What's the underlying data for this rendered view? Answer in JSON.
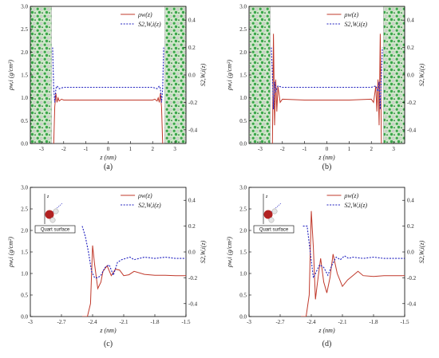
{
  "panels": [
    {
      "caption": "(a)",
      "xlabel": "z (nm)",
      "ylabel_left": "ρw,i (g/cm³)",
      "ylabel_right": "S2,W,i(z)",
      "show_atoms": true,
      "show_inset": false
    },
    {
      "caption": "(b)",
      "xlabel": "z (nm)",
      "ylabel_left": "ρw,i (g/cm³)",
      "ylabel_right": "S2,W,i(z)",
      "show_atoms": true,
      "show_inset": false
    },
    {
      "caption": "(c)",
      "xlabel": "z (nm)",
      "ylabel_left": "ρw,i (g/cm³)",
      "ylabel_right": "S2,W,i(z)",
      "show_atoms": false,
      "show_inset": true,
      "inset_label": "Quart surface"
    },
    {
      "caption": "(d)",
      "xlabel": "z (nm)",
      "ylabel_left": "ρw,i (g/cm³)",
      "ylabel_right": "S2,W,i(z)",
      "show_atoms": false,
      "show_inset": true,
      "inset_label": "Quart surface"
    }
  ],
  "legend": {
    "density": "ρw(z)",
    "order": "S2,W,i(z)"
  },
  "colors": {
    "density": "#c0392b",
    "order": "#1f1fbf",
    "wall_green": "#3aa64a",
    "wall_atom": "#d9d9d9"
  },
  "chart_data": [
    {
      "type": "line",
      "panel": "(a)",
      "xlim": [
        -3.5,
        3.5
      ],
      "ylim_left": [
        0,
        3.0
      ],
      "ylim_right": [
        -0.5,
        0.5
      ],
      "xticks": [
        -3,
        -2,
        -1,
        0,
        1,
        2,
        3
      ],
      "yticks_left": [
        0.0,
        0.5,
        1.0,
        1.5,
        2.0,
        2.5,
        3.0
      ],
      "yticks_right": [
        -0.4,
        -0.2,
        0.0,
        0.2,
        0.4
      ],
      "wall_regions": [
        [
          -3.5,
          -2.55
        ],
        [
          2.55,
          3.5
        ]
      ],
      "series": [
        {
          "name": "ρw(z)",
          "axis": "left",
          "x": [
            -2.45,
            -2.4,
            -2.35,
            -2.3,
            -2.25,
            -2.2,
            -2.1,
            -2.0,
            -1.0,
            0.0,
            1.0,
            2.0,
            2.1,
            2.2,
            2.25,
            2.3,
            2.35,
            2.4,
            2.45
          ],
          "y": [
            0.0,
            0.8,
            1.1,
            0.9,
            1.0,
            0.93,
            0.97,
            0.95,
            0.95,
            0.95,
            0.95,
            0.95,
            0.97,
            0.93,
            1.0,
            0.9,
            1.1,
            0.8,
            0.0
          ]
        },
        {
          "name": "S2,W,i(z)",
          "axis": "right",
          "x": [
            -2.5,
            -2.45,
            -2.4,
            -2.35,
            -2.3,
            -2.2,
            -2.0,
            -1.0,
            0.0,
            1.0,
            2.0,
            2.2,
            2.3,
            2.35,
            2.4,
            2.45,
            2.5
          ],
          "y": [
            0.2,
            -0.1,
            -0.2,
            -0.1,
            -0.08,
            -0.1,
            -0.09,
            -0.09,
            -0.09,
            -0.09,
            -0.09,
            -0.1,
            -0.08,
            -0.1,
            -0.2,
            -0.1,
            0.2
          ]
        }
      ]
    },
    {
      "type": "line",
      "panel": "(b)",
      "xlim": [
        -3.5,
        3.5
      ],
      "ylim_left": [
        0,
        3.0
      ],
      "ylim_right": [
        -0.5,
        0.5
      ],
      "xticks": [
        -3,
        -2,
        -1,
        0,
        1,
        2,
        3
      ],
      "yticks_left": [
        0.0,
        0.5,
        1.0,
        1.5,
        2.0,
        2.5,
        3.0
      ],
      "yticks_right": [
        -0.4,
        -0.2,
        0.0,
        0.2,
        0.4
      ],
      "wall_regions": [
        [
          -3.5,
          -2.55
        ],
        [
          2.55,
          3.5
        ]
      ],
      "series": [
        {
          "name": "ρw(z)",
          "axis": "left",
          "x": [
            -2.45,
            -2.4,
            -2.35,
            -2.3,
            -2.25,
            -2.2,
            -2.1,
            -2.0,
            -1.0,
            0.0,
            1.0,
            2.0,
            2.1,
            2.2,
            2.25,
            2.3,
            2.35,
            2.4,
            2.45
          ],
          "y": [
            0.0,
            2.4,
            0.4,
            1.4,
            0.7,
            1.25,
            0.9,
            0.97,
            0.95,
            0.95,
            0.95,
            0.97,
            0.9,
            1.25,
            0.7,
            1.4,
            0.4,
            2.4,
            0.0
          ]
        },
        {
          "name": "S2,W,i(z)",
          "axis": "right",
          "x": [
            -2.5,
            -2.45,
            -2.4,
            -2.35,
            -2.3,
            -2.2,
            -2.0,
            -1.0,
            0.0,
            1.0,
            2.0,
            2.2,
            2.3,
            2.35,
            2.4,
            2.45,
            2.5
          ],
          "y": [
            0.2,
            0.0,
            -0.25,
            -0.05,
            -0.12,
            -0.08,
            -0.09,
            -0.09,
            -0.09,
            -0.09,
            -0.09,
            -0.08,
            -0.12,
            -0.05,
            -0.25,
            0.0,
            0.2
          ]
        }
      ]
    },
    {
      "type": "line",
      "panel": "(c)",
      "xlim": [
        -3.0,
        -1.5
      ],
      "ylim_left": [
        0,
        3.0
      ],
      "ylim_right": [
        -0.5,
        0.5
      ],
      "xticks": [
        -3.0,
        -2.7,
        -2.4,
        -2.1,
        -1.8,
        -1.5
      ],
      "yticks_left": [
        0.0,
        0.5,
        1.0,
        1.5,
        2.0,
        2.5,
        3.0
      ],
      "yticks_right": [
        -0.4,
        -0.2,
        0.0,
        0.2,
        0.4
      ],
      "series": [
        {
          "name": "ρw(z)",
          "axis": "left",
          "x": [
            -2.5,
            -2.45,
            -2.42,
            -2.4,
            -2.38,
            -2.35,
            -2.32,
            -2.3,
            -2.26,
            -2.22,
            -2.18,
            -2.14,
            -2.1,
            -2.05,
            -2.0,
            -1.9,
            -1.8,
            -1.7,
            -1.6,
            -1.5
          ],
          "y": [
            0.0,
            0.0,
            0.3,
            1.65,
            1.2,
            0.65,
            0.8,
            1.05,
            1.18,
            0.95,
            1.1,
            1.08,
            0.95,
            0.97,
            1.05,
            0.98,
            0.96,
            0.96,
            0.95,
            0.95
          ]
        },
        {
          "name": "S2,W,i(z)",
          "axis": "right",
          "x": [
            -2.5,
            -2.47,
            -2.44,
            -2.41,
            -2.38,
            -2.35,
            -2.32,
            -2.28,
            -2.24,
            -2.2,
            -2.16,
            -2.12,
            -2.08,
            -2.04,
            -2.0,
            -1.9,
            -1.8,
            -1.7,
            -1.6,
            -1.5
          ],
          "y": [
            0.2,
            0.12,
            0.0,
            -0.15,
            -0.2,
            -0.2,
            -0.18,
            -0.12,
            -0.1,
            -0.18,
            -0.08,
            -0.06,
            -0.05,
            -0.04,
            -0.06,
            -0.04,
            -0.05,
            -0.04,
            -0.05,
            -0.05
          ]
        }
      ]
    },
    {
      "type": "line",
      "panel": "(d)",
      "xlim": [
        -3.0,
        -1.5
      ],
      "ylim_left": [
        0,
        3.0
      ],
      "ylim_right": [
        -0.5,
        0.5
      ],
      "xticks": [
        -3.0,
        -2.7,
        -2.4,
        -2.1,
        -1.8,
        -1.5
      ],
      "yticks_left": [
        0.0,
        0.5,
        1.0,
        1.5,
        2.0,
        2.5,
        3.0
      ],
      "yticks_right": [
        -0.4,
        -0.2,
        0.0,
        0.2,
        0.4
      ],
      "series": [
        {
          "name": "ρw(z)",
          "axis": "left",
          "x": [
            -2.5,
            -2.45,
            -2.42,
            -2.4,
            -2.38,
            -2.36,
            -2.34,
            -2.31,
            -2.28,
            -2.25,
            -2.22,
            -2.19,
            -2.15,
            -2.1,
            -2.05,
            -2.0,
            -1.95,
            -1.9,
            -1.8,
            -1.7,
            -1.6,
            -1.5
          ],
          "y": [
            0.0,
            0.0,
            0.5,
            2.45,
            1.6,
            0.4,
            0.8,
            1.35,
            0.8,
            0.55,
            0.9,
            1.45,
            1.0,
            0.7,
            0.85,
            0.95,
            1.05,
            0.95,
            0.93,
            0.95,
            0.95,
            0.95
          ]
        },
        {
          "name": "S2,W,i(z)",
          "axis": "right",
          "x": [
            -2.48,
            -2.44,
            -2.41,
            -2.38,
            -2.35,
            -2.32,
            -2.28,
            -2.24,
            -2.2,
            -2.16,
            -2.12,
            -2.08,
            -2.04,
            -2.0,
            -1.9,
            -1.8,
            -1.7,
            -1.6,
            -1.5
          ],
          "y": [
            0.2,
            0.2,
            0.0,
            -0.2,
            -0.15,
            -0.1,
            -0.12,
            -0.18,
            -0.1,
            -0.04,
            -0.06,
            -0.03,
            -0.05,
            -0.04,
            -0.05,
            -0.04,
            -0.05,
            -0.05,
            -0.05
          ]
        }
      ]
    }
  ]
}
